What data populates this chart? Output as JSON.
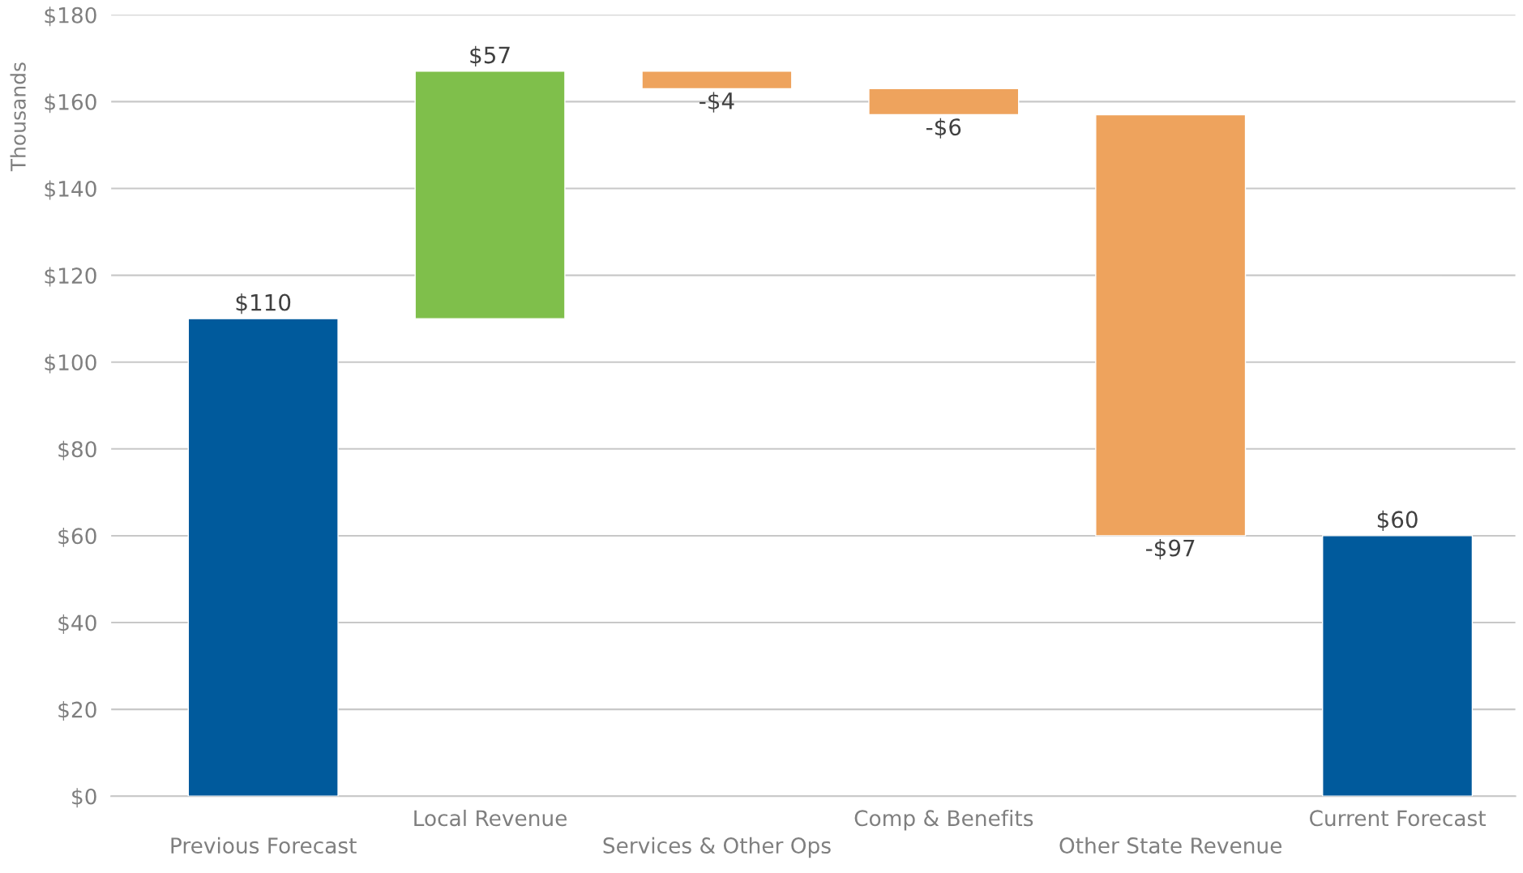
{
  "chart_data": {
    "type": "bar",
    "ylabel": "Thousands",
    "categories": [
      "Previous Forecast",
      "Local Revenue",
      "Services & Other Ops",
      "Comp & Benefits",
      "Other State Revenue",
      "Current Forecast"
    ],
    "values": [
      110,
      57,
      -4,
      -6,
      -97,
      60
    ],
    "base": [
      0,
      110,
      167,
      163,
      157,
      0
    ],
    "colors": [
      "#005a9c",
      "#7fbf4b",
      "#eea35d",
      "#eea35d",
      "#eea35d",
      "#005a9c"
    ],
    "value_labels": [
      "$110",
      "$57",
      "-$4",
      "-$6",
      "-$97",
      "$60"
    ],
    "ylim": [
      0,
      180
    ],
    "yticks": [
      {
        "value": 0,
        "label": "$0"
      },
      {
        "value": 20,
        "label": "$20"
      },
      {
        "value": 40,
        "label": "$40"
      },
      {
        "value": 60,
        "label": "$60"
      },
      {
        "value": 80,
        "label": "$80"
      },
      {
        "value": 100,
        "label": "$100"
      },
      {
        "value": 120,
        "label": "$120"
      },
      {
        "value": 140,
        "label": "$140"
      },
      {
        "value": 160,
        "label": "$160"
      },
      {
        "value": 180,
        "label": "$180"
      }
    ],
    "grid": "y",
    "legend": false
  }
}
